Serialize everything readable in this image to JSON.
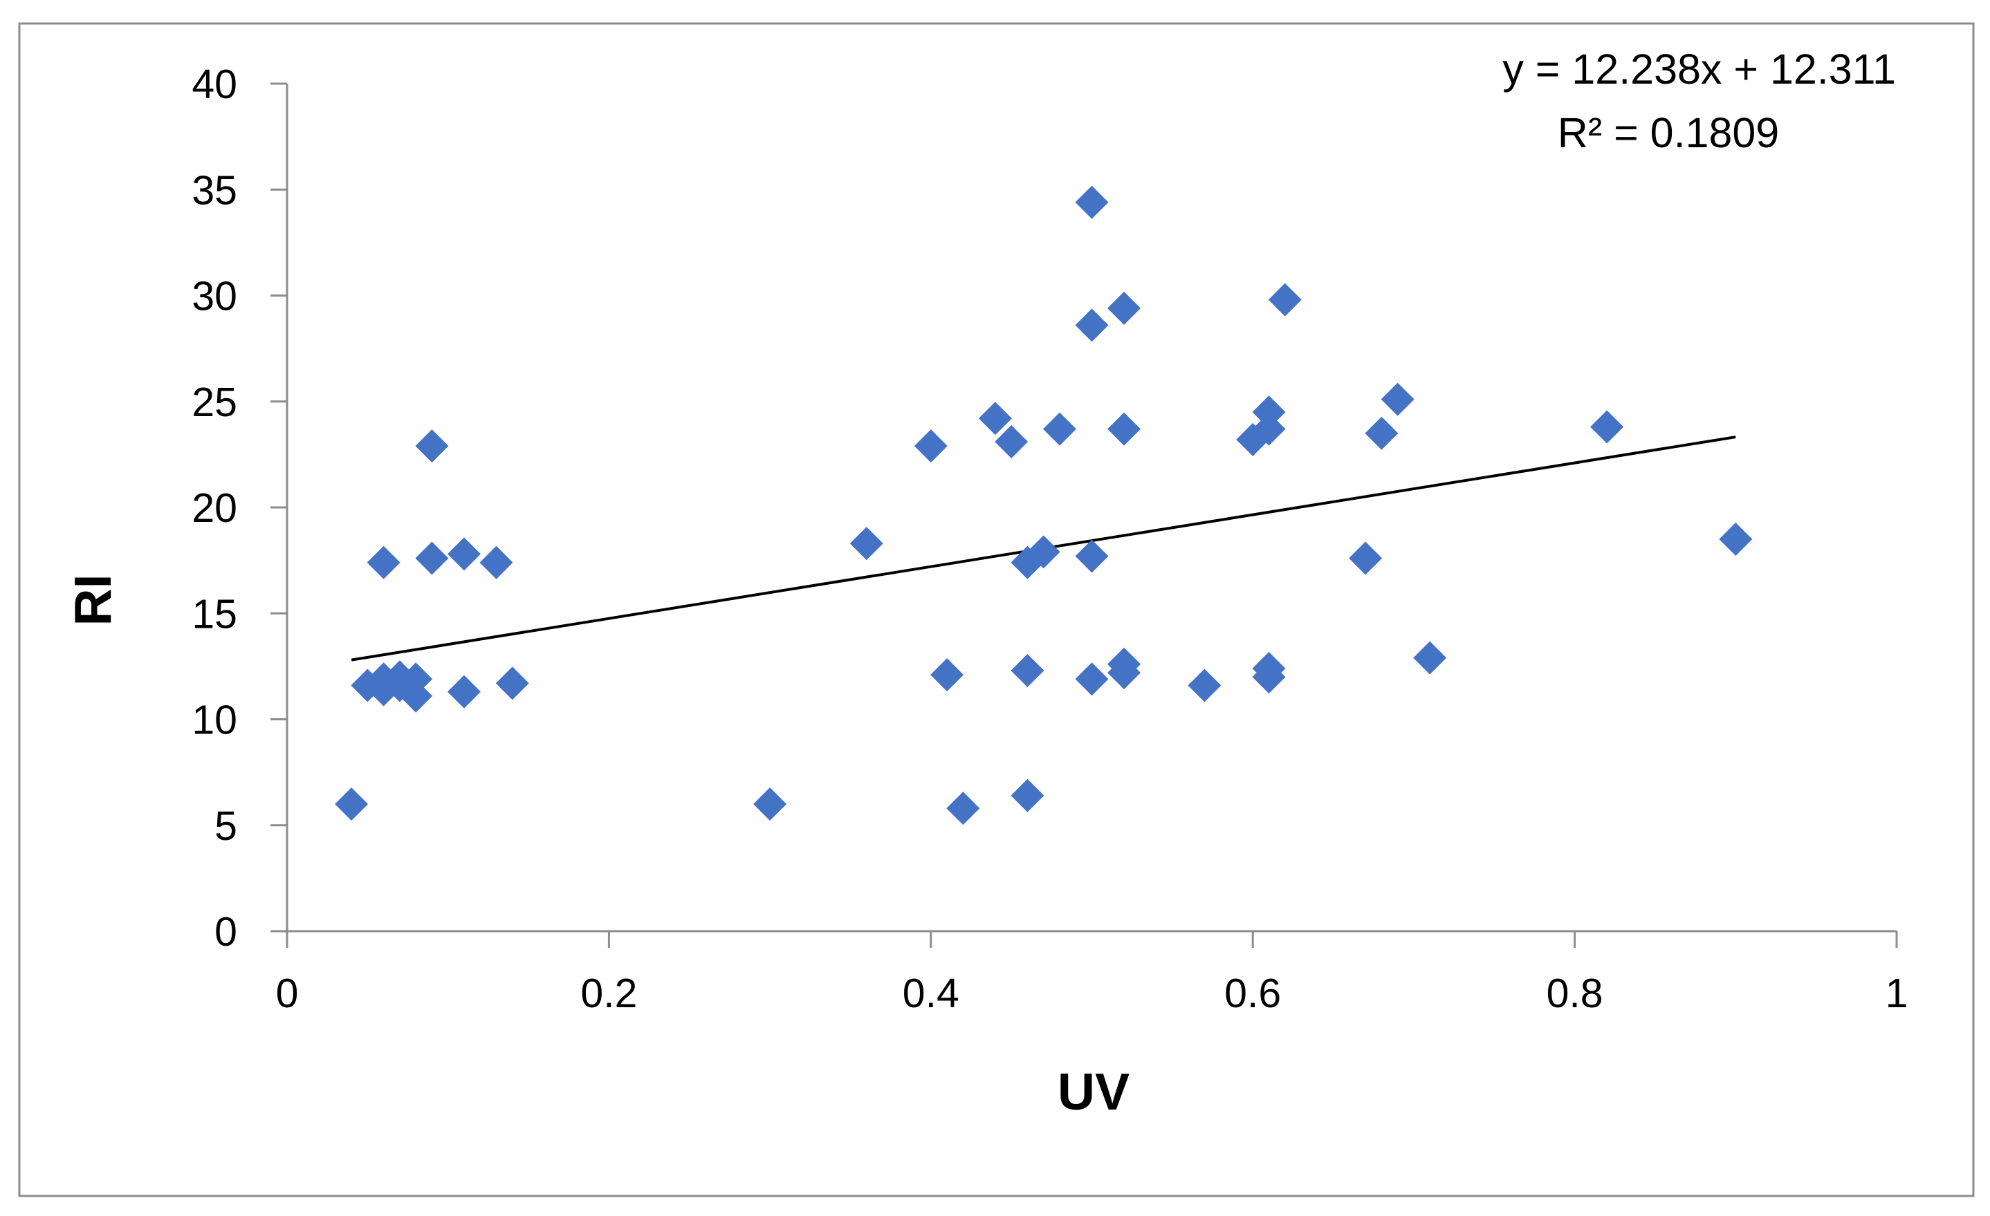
{
  "chart_data": {
    "type": "scatter",
    "title": "",
    "xlabel": "UV",
    "ylabel": "RI",
    "xlim": [
      0,
      1
    ],
    "ylim": [
      0,
      40
    ],
    "x_ticks": [
      "0",
      "0.2",
      "0.4",
      "0.6",
      "0.8",
      "1"
    ],
    "x_tick_values": [
      0,
      0.2,
      0.4,
      0.6,
      0.8,
      1
    ],
    "y_ticks": [
      "0",
      "5",
      "10",
      "15",
      "20",
      "25",
      "30",
      "35",
      "40"
    ],
    "y_tick_values": [
      0,
      5,
      10,
      15,
      20,
      25,
      30,
      35,
      40
    ],
    "grid": false,
    "legend": "none",
    "marker": "diamond",
    "marker_color": "#4472C4",
    "series": [
      {
        "points": [
          [
            0.04,
            6.0
          ],
          [
            0.05,
            11.6
          ],
          [
            0.06,
            11.4
          ],
          [
            0.06,
            11.9
          ],
          [
            0.07,
            11.6
          ],
          [
            0.07,
            12.0
          ],
          [
            0.08,
            11.1
          ],
          [
            0.08,
            11.9
          ],
          [
            0.06,
            17.4
          ],
          [
            0.09,
            17.6
          ],
          [
            0.09,
            22.9
          ],
          [
            0.11,
            17.8
          ],
          [
            0.11,
            11.3
          ],
          [
            0.13,
            17.4
          ],
          [
            0.14,
            11.7
          ],
          [
            0.3,
            6.0
          ],
          [
            0.36,
            18.3
          ],
          [
            0.4,
            22.9
          ],
          [
            0.41,
            12.1
          ],
          [
            0.42,
            5.8
          ],
          [
            0.44,
            24.2
          ],
          [
            0.45,
            23.1
          ],
          [
            0.46,
            17.4
          ],
          [
            0.46,
            12.3
          ],
          [
            0.46,
            6.4
          ],
          [
            0.47,
            17.9
          ],
          [
            0.48,
            23.7
          ],
          [
            0.5,
            34.4
          ],
          [
            0.5,
            28.6
          ],
          [
            0.5,
            17.7
          ],
          [
            0.5,
            11.9
          ],
          [
            0.52,
            29.4
          ],
          [
            0.52,
            23.7
          ],
          [
            0.52,
            12.2
          ],
          [
            0.52,
            12.6
          ],
          [
            0.57,
            11.6
          ],
          [
            0.6,
            23.2
          ],
          [
            0.61,
            24.5
          ],
          [
            0.61,
            23.7
          ],
          [
            0.61,
            12.0
          ],
          [
            0.61,
            12.4
          ],
          [
            0.62,
            29.8
          ],
          [
            0.67,
            17.6
          ],
          [
            0.68,
            23.5
          ],
          [
            0.69,
            25.1
          ],
          [
            0.71,
            12.9
          ],
          [
            0.82,
            23.8
          ],
          [
            0.9,
            18.5
          ]
        ]
      }
    ],
    "trendline": {
      "slope": 12.238,
      "intercept": 12.311,
      "x_range": [
        0.04,
        0.9
      ],
      "color": "#000000"
    },
    "annotations": {
      "equation": "y = 12.238x + 12.311",
      "r_squared": "R² = 0.1809"
    }
  }
}
